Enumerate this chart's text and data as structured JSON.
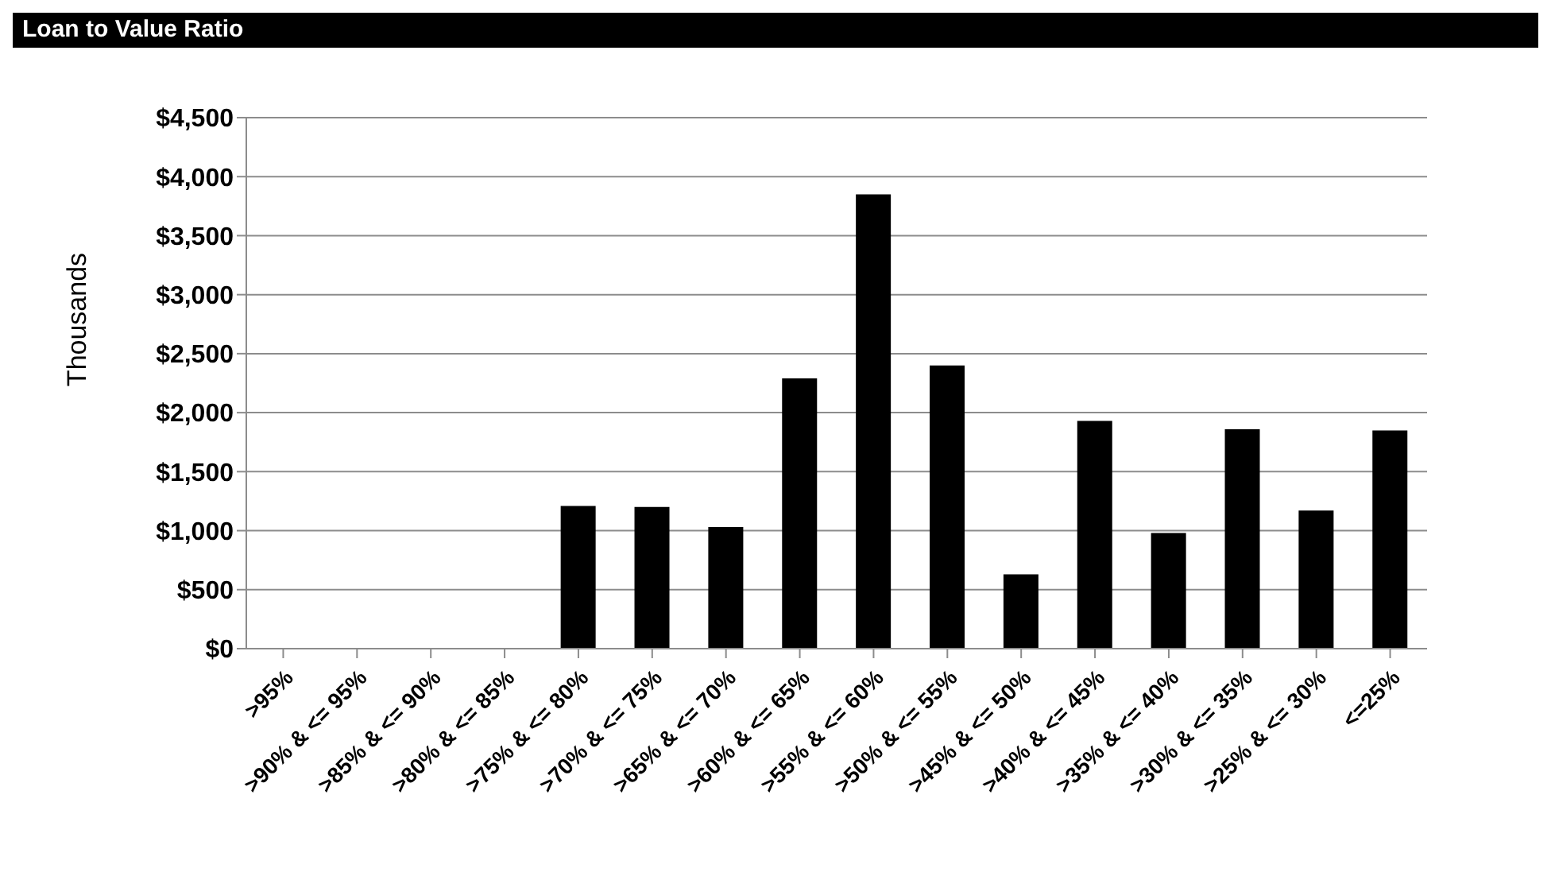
{
  "chart_data": {
    "type": "bar",
    "title": "Loan to Value Ratio",
    "ylabel": "Thousands",
    "categories": [
      ">95%",
      ">90% & <= 95%",
      ">85% & <= 90%",
      ">80% & <= 85%",
      ">75% & <= 80%",
      ">70% & <= 75%",
      ">65% & <= 70%",
      ">60% & <= 65%",
      ">55% & <= 60%",
      ">50% & <= 55%",
      ">45% & <= 50%",
      ">40% & <= 45%",
      ">35% & <= 40%",
      ">30% & <= 35%",
      ">25% & <= 30%",
      "<=25%"
    ],
    "values": [
      0,
      0,
      0,
      0,
      1210,
      1200,
      1030,
      2290,
      3850,
      2400,
      630,
      1930,
      980,
      1860,
      1170,
      1850
    ],
    "color": "#000000",
    "ylim": [
      0,
      4500
    ],
    "yticks": [
      {
        "value": 0,
        "label": "$0"
      },
      {
        "value": 500,
        "label": "$500"
      },
      {
        "value": 1000,
        "label": "$1,000"
      },
      {
        "value": 1500,
        "label": "$1,500"
      },
      {
        "value": 2000,
        "label": "$2,000"
      },
      {
        "value": 2500,
        "label": "$2,500"
      },
      {
        "value": 3000,
        "label": "$3,000"
      },
      {
        "value": 3500,
        "label": "$3,500"
      },
      {
        "value": 4000,
        "label": "$4,000"
      },
      {
        "value": 4500,
        "label": "$4,500"
      }
    ],
    "grid": "y"
  }
}
